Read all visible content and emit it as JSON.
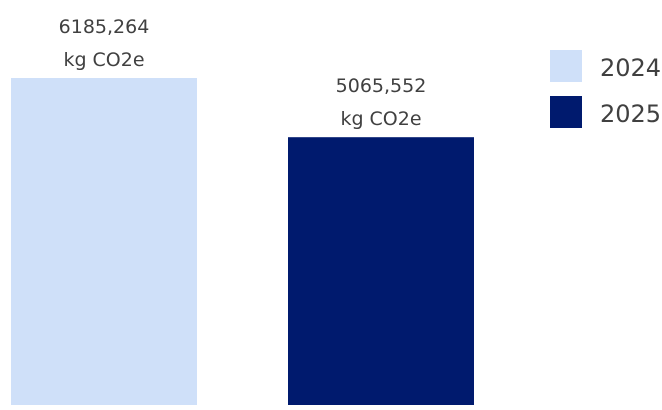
{
  "chart_data": {
    "type": "bar",
    "categories": [
      "2024",
      "2025"
    ],
    "values": [
      6185.264,
      5065.552
    ],
    "value_labels": [
      "6185,264",
      "5065,552"
    ],
    "unit": "kg CO2e",
    "colors": [
      "#cfe0f9",
      "#001a6e"
    ],
    "ylim": [
      0,
      6185.264
    ],
    "grid": false,
    "legend": {
      "position": "top-right",
      "entries": [
        "2024",
        "2025"
      ]
    }
  }
}
